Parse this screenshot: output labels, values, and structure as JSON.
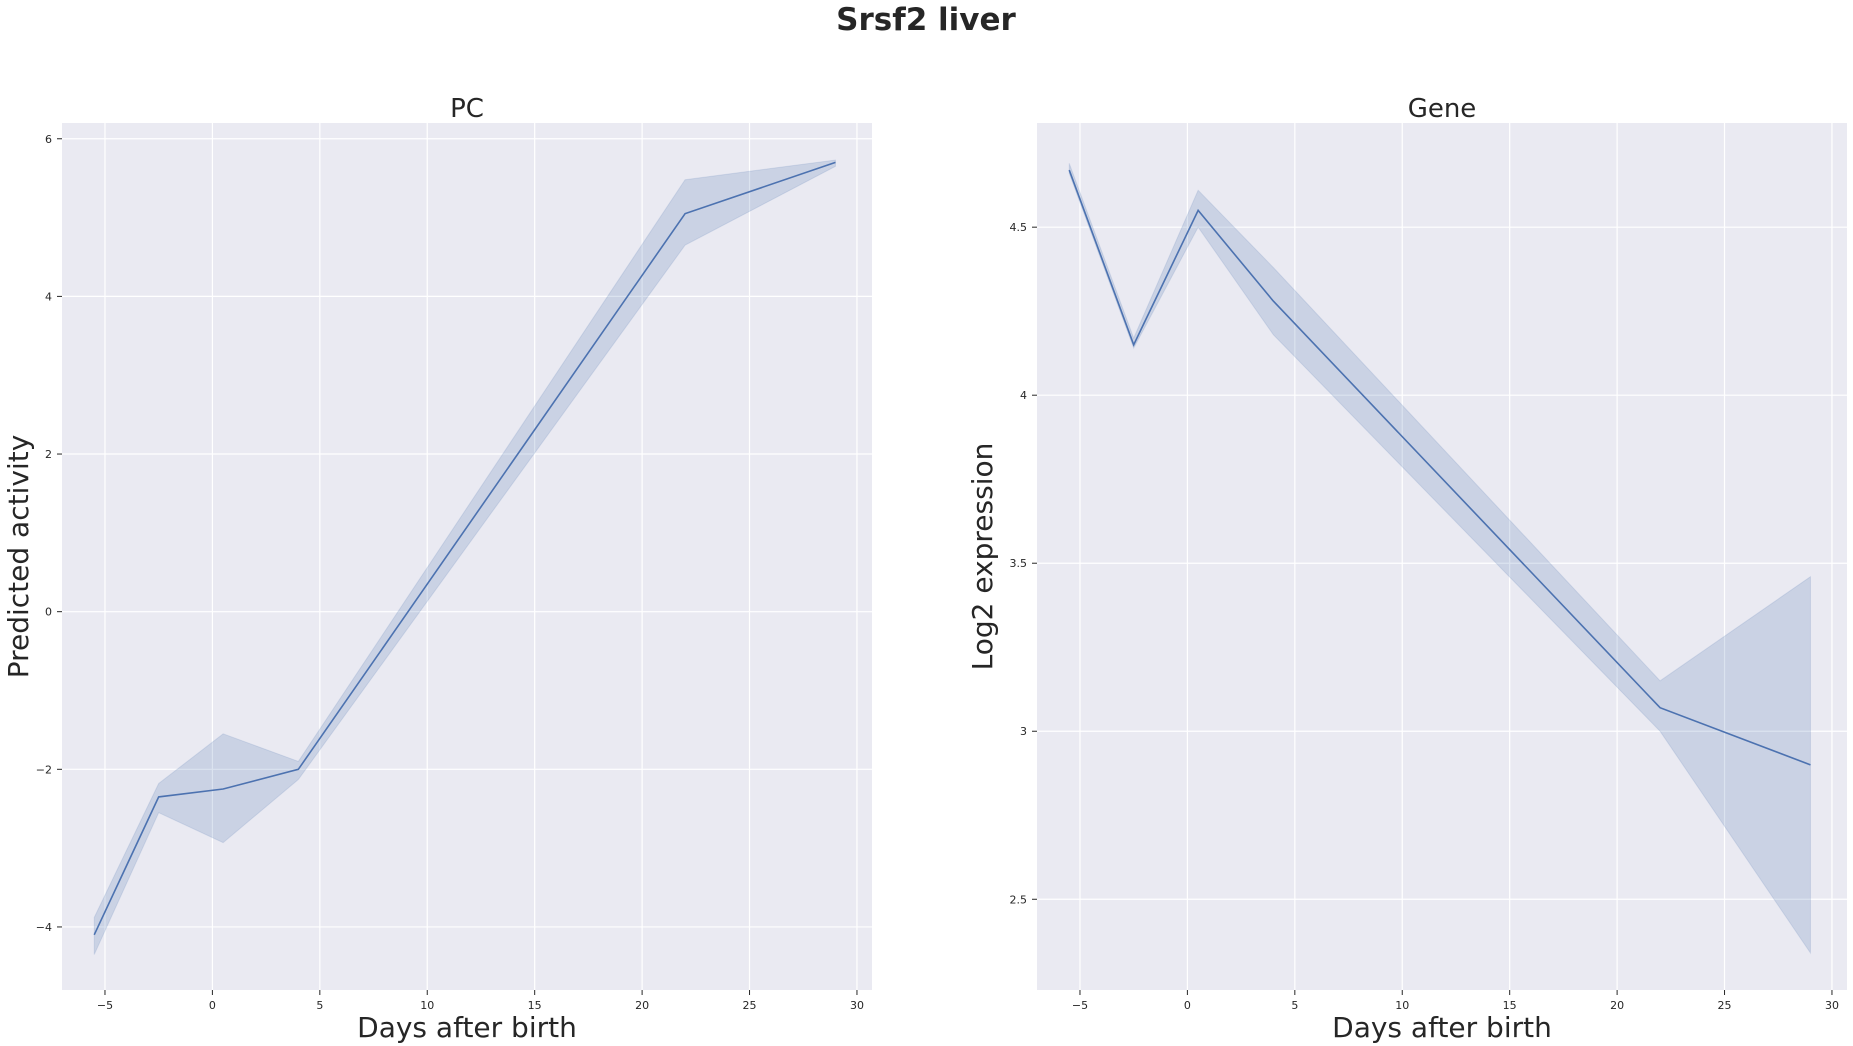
{
  "figure": {
    "suptitle": "Srsf2 liver"
  },
  "colors": {
    "background": "#eaeaf2",
    "grid": "#ffffff",
    "series": "#4c72b0",
    "text": "#262626"
  },
  "chart_data": [
    {
      "type": "line",
      "title": "PC",
      "xlabel": "Days after birth",
      "ylabel": "Predicted activity",
      "xlim": [
        -7,
        30.7
      ],
      "ylim": [
        -4.8,
        6.2
      ],
      "xticks": [
        -5,
        0,
        5,
        10,
        15,
        20,
        25,
        30
      ],
      "yticks": [
        -4,
        -2,
        0,
        2,
        4,
        6
      ],
      "grid": true,
      "series": [
        {
          "x": [
            -5.5,
            -2.5,
            0.5,
            4,
            22,
            29
          ],
          "y": [
            -4.1,
            -2.35,
            -2.25,
            -2.0,
            5.05,
            5.7
          ],
          "ci_low": [
            -4.35,
            -2.55,
            -2.93,
            -2.13,
            4.65,
            5.65
          ],
          "ci_high": [
            -3.88,
            -2.18,
            -1.55,
            -1.9,
            5.48,
            5.73
          ]
        }
      ]
    },
    {
      "type": "line",
      "title": "Gene",
      "xlabel": "Days after birth",
      "ylabel": "Log2 expression",
      "xlim": [
        -7,
        30.7
      ],
      "ylim": [
        2.23,
        4.81
      ],
      "xticks": [
        -5,
        0,
        5,
        10,
        15,
        20,
        25,
        30
      ],
      "yticks": [
        2.5,
        3.0,
        3.5,
        4.0,
        4.5
      ],
      "grid": true,
      "series": [
        {
          "x": [
            -5.5,
            -2.5,
            0.5,
            4,
            22,
            29
          ],
          "y": [
            4.67,
            4.15,
            4.55,
            4.28,
            3.07,
            2.9
          ],
          "ci_low": [
            4.66,
            4.14,
            4.5,
            4.18,
            3.0,
            2.34
          ],
          "ci_high": [
            4.69,
            4.17,
            4.61,
            4.38,
            3.15,
            3.46
          ]
        }
      ]
    }
  ]
}
